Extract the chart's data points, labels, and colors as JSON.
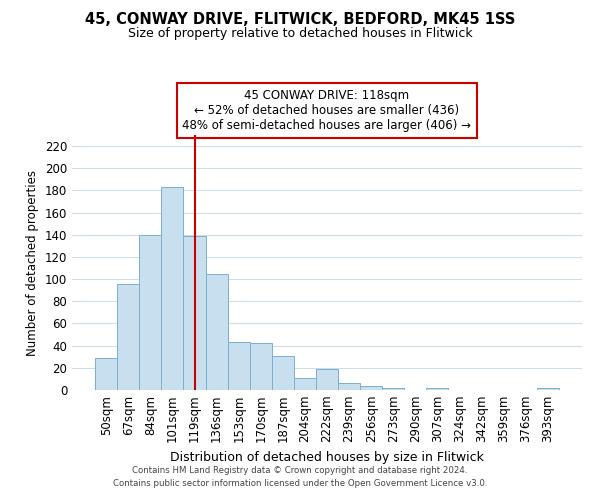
{
  "title": "45, CONWAY DRIVE, FLITWICK, BEDFORD, MK45 1SS",
  "subtitle": "Size of property relative to detached houses in Flitwick",
  "xlabel": "Distribution of detached houses by size in Flitwick",
  "ylabel": "Number of detached properties",
  "bar_labels": [
    "50sqm",
    "67sqm",
    "84sqm",
    "101sqm",
    "119sqm",
    "136sqm",
    "153sqm",
    "170sqm",
    "187sqm",
    "204sqm",
    "222sqm",
    "239sqm",
    "256sqm",
    "273sqm",
    "290sqm",
    "307sqm",
    "324sqm",
    "342sqm",
    "359sqm",
    "376sqm",
    "393sqm"
  ],
  "bar_values": [
    29,
    96,
    140,
    183,
    139,
    105,
    43,
    42,
    31,
    11,
    19,
    6,
    4,
    2,
    0,
    2,
    0,
    0,
    0,
    0,
    2
  ],
  "bar_color": "#c8dff0",
  "bar_edge_color": "#7ab0d0",
  "vline_x": 4,
  "vline_color": "#cc0000",
  "ylim": [
    0,
    230
  ],
  "yticks": [
    0,
    20,
    40,
    60,
    80,
    100,
    120,
    140,
    160,
    180,
    200,
    220
  ],
  "annotation_line1": "45 CONWAY DRIVE: 118sqm",
  "annotation_line2": "← 52% of detached houses are smaller (436)",
  "annotation_line3": "48% of semi-detached houses are larger (406) →",
  "annotation_box_color": "#ffffff",
  "annotation_box_edge": "#cc0000",
  "footer_line1": "Contains HM Land Registry data © Crown copyright and database right 2024.",
  "footer_line2": "Contains public sector information licensed under the Open Government Licence v3.0.",
  "background_color": "#ffffff",
  "grid_color": "#ccdde8"
}
